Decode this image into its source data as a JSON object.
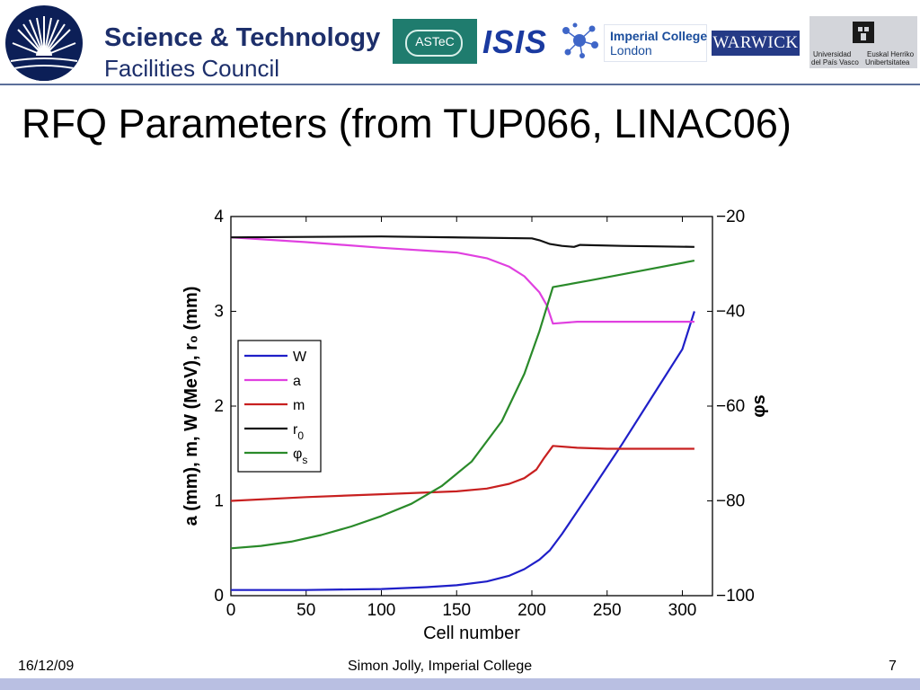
{
  "header": {
    "stfc_line1": "Science & Technology",
    "stfc_line2": "Facilities Council",
    "astec": "ASTeC",
    "isis": "ISIS",
    "imperial_line1": "Imperial College",
    "imperial_line2": "London",
    "warwick": "WARWICK",
    "ehu_left_line1": "Universidad",
    "ehu_left_line2": "del País Vasco",
    "ehu_right_line1": "Euskal Herriko",
    "ehu_right_line2": "Unibertsitatea"
  },
  "slide": {
    "title": "RFQ Parameters (from TUP066, LINAC06)"
  },
  "footer": {
    "date": "16/12/09",
    "author": "Simon Jolly, Imperial College",
    "page": "7"
  },
  "chart_data": {
    "type": "line",
    "xlabel": "Cell number",
    "ylabel": "a (mm), m, W (MeV), r₀ (mm)",
    "ylabel2": "φs",
    "xlim": [
      0,
      320
    ],
    "ylim": [
      0,
      4
    ],
    "y2lim": [
      -100,
      -20
    ],
    "xticks": [
      "0",
      "50",
      "100",
      "150",
      "200",
      "250",
      "300"
    ],
    "yticks": [
      "0",
      "1",
      "2",
      "3",
      "4"
    ],
    "y2ticks": [
      "−100",
      "−80",
      "−60",
      "−40",
      "−20"
    ],
    "legend_position": "left-middle",
    "series": [
      {
        "name": "W",
        "color": "#1f1fc8",
        "axis": "left",
        "x": [
          0,
          50,
          100,
          130,
          150,
          170,
          185,
          195,
          205,
          212,
          220,
          240,
          260,
          280,
          300,
          308
        ],
        "y": [
          0.06,
          0.06,
          0.07,
          0.09,
          0.11,
          0.15,
          0.21,
          0.28,
          0.38,
          0.48,
          0.65,
          1.12,
          1.6,
          2.1,
          2.6,
          3.0
        ]
      },
      {
        "name": "a",
        "color": "#e040e0",
        "axis": "left",
        "x": [
          0,
          50,
          100,
          150,
          170,
          185,
          195,
          205,
          210,
          214,
          230,
          250,
          280,
          308
        ],
        "y": [
          3.78,
          3.73,
          3.67,
          3.62,
          3.56,
          3.47,
          3.37,
          3.2,
          3.06,
          2.87,
          2.89,
          2.89,
          2.89,
          2.89
        ]
      },
      {
        "name": "m",
        "color": "#c82020",
        "axis": "left",
        "x": [
          0,
          50,
          100,
          150,
          170,
          185,
          195,
          203,
          208,
          214,
          230,
          250,
          280,
          308
        ],
        "y": [
          1.0,
          1.04,
          1.07,
          1.1,
          1.13,
          1.18,
          1.24,
          1.33,
          1.45,
          1.58,
          1.56,
          1.55,
          1.55,
          1.55
        ]
      },
      {
        "name": "r0",
        "color": "#111111",
        "axis": "left",
        "x": [
          0,
          100,
          200,
          205,
          212,
          220,
          228,
          232,
          260,
          308
        ],
        "y": [
          3.78,
          3.79,
          3.77,
          3.75,
          3.71,
          3.69,
          3.68,
          3.7,
          3.69,
          3.68
        ]
      },
      {
        "name": "φs",
        "color": "#2a8a2a",
        "axis": "right",
        "x": [
          0,
          20,
          40,
          60,
          80,
          100,
          120,
          140,
          160,
          180,
          195,
          205,
          214,
          240,
          270,
          308
        ],
        "y": [
          -90,
          -89.5,
          -88.6,
          -87.2,
          -85.4,
          -83.2,
          -80.6,
          -76.9,
          -71.7,
          -63.2,
          -53.2,
          -44.2,
          -34.9,
          -33.4,
          -31.6,
          -29.3
        ]
      }
    ]
  }
}
